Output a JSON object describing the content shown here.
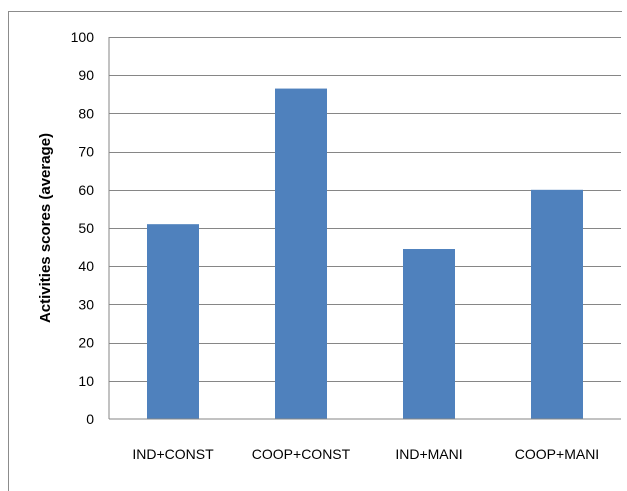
{
  "chart_data": {
    "type": "bar",
    "title": "",
    "xlabel": "",
    "ylabel": "Activities scores (average)",
    "categories": [
      "IND+CONST",
      "COOP+CONST",
      "IND+MANI",
      "COOP+MANI"
    ],
    "values": [
      51,
      86.5,
      44.5,
      60
    ],
    "ylim": [
      0,
      100
    ],
    "yticks": [
      0,
      10,
      20,
      30,
      40,
      50,
      60,
      70,
      80,
      90,
      100
    ],
    "grid": true,
    "legend": "none",
    "bar_color": "#4f81bd",
    "gridline_color": "#868686"
  }
}
